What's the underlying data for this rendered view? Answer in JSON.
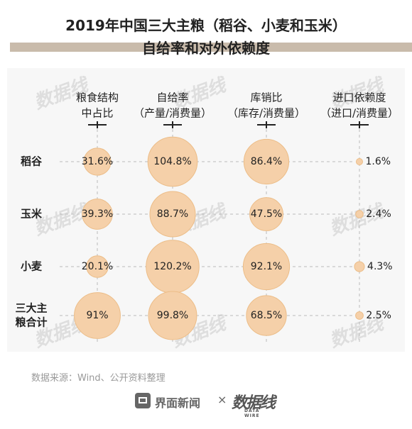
{
  "title": "2019年中国三大主粮（稻谷、小麦和玉米）",
  "subtitle": "自给率和对外依赖度",
  "source": "数据来源：Wind、公开资料整理",
  "footer": {
    "brand": "界面新闻",
    "times": "×",
    "partner_logo": "数据线",
    "partner_sub": "DATA WIRE"
  },
  "watermark_text": "数据线",
  "colors": {
    "bubble_fill": "#f5d0a9",
    "bubble_stroke": "#ecbd88",
    "band": "#c9bbab",
    "panel": "#f7f7f7",
    "dash": "#bbbbbb"
  },
  "chart_data": {
    "type": "bubble-table",
    "columns": [
      {
        "lines": [
          "粮食结构",
          "中占比"
        ]
      },
      {
        "lines": [
          "自给率",
          "（产量/消费量）"
        ]
      },
      {
        "lines": [
          "库销比",
          "（库存/消费量）"
        ]
      },
      {
        "lines": [
          "进口依赖度",
          "（进口/消费量）"
        ]
      }
    ],
    "rows": [
      {
        "lines": [
          "稻谷"
        ],
        "labels": [
          "31.6%",
          "104.8%",
          "86.4%",
          "1.6%"
        ],
        "values": [
          31.6,
          104.8,
          86.4,
          1.6
        ]
      },
      {
        "lines": [
          "玉米"
        ],
        "labels": [
          "39.3%",
          "88.7%",
          "47.5%",
          "2.4%"
        ],
        "values": [
          39.3,
          88.7,
          47.5,
          2.4
        ]
      },
      {
        "lines": [
          "小麦"
        ],
        "labels": [
          "20.1%",
          "120.2%",
          "92.1%",
          "4.3%"
        ],
        "values": [
          20.1,
          120.2,
          92.1,
          4.3
        ]
      },
      {
        "lines": [
          "三大主",
          "粮合计"
        ],
        "labels": [
          "91%",
          "99.8%",
          "68.5%",
          "2.5%"
        ],
        "values": [
          91,
          99.8,
          68.5,
          2.5
        ]
      }
    ]
  }
}
